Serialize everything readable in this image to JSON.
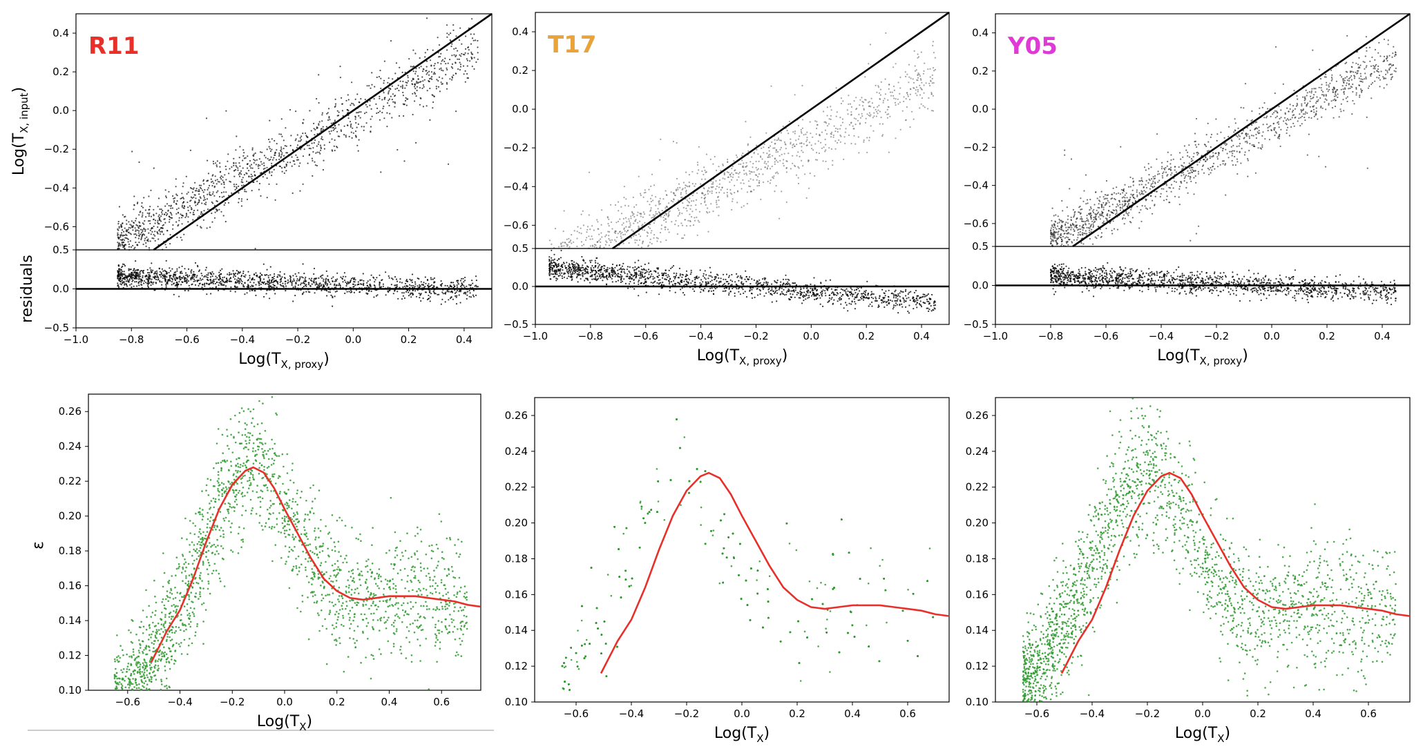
{
  "figure": {
    "xlabel_proxy_main": "Log(T",
    "xlabel_proxy_sub": "X, proxy",
    "xlabel_proxy_close": ")",
    "ylabel_input_main": "Log(T",
    "ylabel_input_sub": "X, input",
    "ylabel_input_close": ")",
    "ylabel_residuals": "residuals",
    "xlabel_tx_main": "Log(T",
    "xlabel_tx_sub": "X",
    "xlabel_tx_close": ")",
    "ylabel_eps": "ε"
  },
  "chart_data": [
    {
      "id": "R11",
      "type": "scatter",
      "panel_label": "R11",
      "label_color": "#e8302a",
      "point_color": "#111111",
      "point_opacity": 0.75,
      "top": {
        "xlim": [
          -1.0,
          0.5
        ],
        "ylim": [
          -0.72,
          0.5
        ],
        "yticks": [
          0.4,
          0.2,
          0.0,
          -0.2,
          -0.4,
          -0.6
        ],
        "ytick_labels": [
          "0.4",
          "0.2",
          "0.0",
          "−0.2",
          "−0.4",
          "−0.6"
        ],
        "reference_line": {
          "slope": 1.0,
          "intercept": 0.0
        },
        "cloud": {
          "x_range": [
            -0.85,
            0.45
          ],
          "slope": 0.78,
          "intercept": -0.03,
          "scatter": 0.07
        }
      },
      "residuals": {
        "xlim": [
          -1.0,
          0.5
        ],
        "ylim": [
          -0.5,
          0.5
        ],
        "yticks": [
          0.5,
          0.0,
          -0.5
        ],
        "ytick_labels": [
          "0.5",
          "0.0",
          "−0.5"
        ],
        "xticks": [
          -1.0,
          -0.8,
          -0.6,
          -0.4,
          -0.2,
          0.0,
          0.2,
          0.4
        ],
        "xtick_labels": [
          "−1.0",
          "−0.8",
          "−0.6",
          "−0.4",
          "−0.2",
          "0.0",
          "0.2",
          "0.4"
        ],
        "zero_line": 0.0,
        "trend": {
          "at_minus_0_8": 0.15,
          "at_0_4": 0.0
        }
      },
      "epsilon": {
        "xlim": [
          -0.75,
          0.75
        ],
        "ylim": [
          0.1,
          0.27
        ],
        "yticks": [
          0.1,
          0.12,
          0.14,
          0.16,
          0.18,
          0.2,
          0.22,
          0.24,
          0.26
        ],
        "ytick_labels": [
          "0.10",
          "0.12",
          "0.14",
          "0.16",
          "0.18",
          "0.20",
          "0.22",
          "0.24",
          "0.26"
        ],
        "xticks": [
          -0.6,
          -0.4,
          -0.2,
          0.0,
          0.2,
          0.4,
          0.6
        ],
        "xtick_labels": [
          "−0.6",
          "−0.4",
          "−0.2",
          "0.0",
          "0.2",
          "0.4",
          "0.6"
        ],
        "point_color": "#2e9a2e",
        "x_shift": 0.0,
        "curve": {
          "color": "#e8302a",
          "x": [
            -0.51,
            -0.45,
            -0.4,
            -0.35,
            -0.3,
            -0.25,
            -0.2,
            -0.15,
            -0.12,
            -0.08,
            -0.04,
            0.0,
            0.05,
            0.1,
            0.15,
            0.2,
            0.25,
            0.3,
            0.35,
            0.4,
            0.45,
            0.5,
            0.55,
            0.6,
            0.65,
            0.7,
            0.75
          ],
          "y": [
            0.116,
            0.134,
            0.146,
            0.164,
            0.185,
            0.204,
            0.218,
            0.226,
            0.228,
            0.225,
            0.216,
            0.204,
            0.19,
            0.176,
            0.164,
            0.157,
            0.153,
            0.152,
            0.153,
            0.154,
            0.154,
            0.154,
            0.153,
            0.152,
            0.151,
            0.149,
            0.148
          ]
        }
      }
    },
    {
      "id": "T17",
      "type": "scatter",
      "panel_label": "T17",
      "label_color": "#e8a33d",
      "point_color": "#555555",
      "point_opacity": 0.55,
      "top": {
        "xlim": [
          -1.0,
          0.5
        ],
        "ylim": [
          -0.72,
          0.5
        ],
        "yticks": [
          0.4,
          0.2,
          0.0,
          -0.2,
          -0.4,
          -0.6
        ],
        "ytick_labels": [
          "0.4",
          "0.2",
          "0.0",
          "−0.2",
          "−0.4",
          "−0.6"
        ],
        "reference_line": {
          "slope": 1.0,
          "intercept": 0.0
        },
        "cloud": {
          "x_range": [
            -0.95,
            0.45
          ],
          "slope": 0.72,
          "intercept": -0.16,
          "scatter": 0.08
        }
      },
      "residuals": {
        "xlim": [
          -1.0,
          0.5
        ],
        "ylim": [
          -0.5,
          0.5
        ],
        "yticks": [
          0.5,
          0.0,
          -0.5
        ],
        "ytick_labels": [
          "0.5",
          "0.0",
          "−0.5"
        ],
        "xticks": [
          -1.0,
          -0.8,
          -0.6,
          -0.4,
          -0.2,
          0.0,
          0.2,
          0.4
        ],
        "xtick_labels": [
          "−1.0",
          "−0.8",
          "−0.6",
          "−0.4",
          "−0.2",
          "0.0",
          "0.2",
          "0.4"
        ],
        "zero_line": 0.0,
        "trend": {
          "at_minus_0_8": 0.2,
          "at_0_4": -0.2
        }
      },
      "epsilon": {
        "xlim": [
          -0.75,
          0.75
        ],
        "ylim": [
          0.1,
          0.27
        ],
        "yticks": [
          0.1,
          0.12,
          0.14,
          0.16,
          0.18,
          0.2,
          0.22,
          0.24,
          0.26
        ],
        "ytick_labels": [
          "0.10",
          "0.12",
          "0.14",
          "0.16",
          "0.18",
          "0.20",
          "0.22",
          "0.24",
          "0.26"
        ],
        "xticks": [
          -0.6,
          -0.4,
          -0.2,
          0.0,
          0.2,
          0.4,
          0.6
        ],
        "xtick_labels": [
          "−0.6",
          "−0.4",
          "−0.2",
          "0.0",
          "0.2",
          "0.4",
          "0.6"
        ],
        "point_color": "#2e9a2e",
        "x_shift": -0.12,
        "curve": {
          "color": "#e8302a",
          "x": [
            -0.51,
            -0.45,
            -0.4,
            -0.35,
            -0.3,
            -0.25,
            -0.2,
            -0.15,
            -0.12,
            -0.08,
            -0.04,
            0.0,
            0.05,
            0.1,
            0.15,
            0.2,
            0.25,
            0.3,
            0.35,
            0.4,
            0.45,
            0.5,
            0.55,
            0.6,
            0.65,
            0.7,
            0.75
          ],
          "y": [
            0.116,
            0.134,
            0.146,
            0.164,
            0.185,
            0.204,
            0.218,
            0.226,
            0.228,
            0.225,
            0.216,
            0.204,
            0.19,
            0.176,
            0.164,
            0.157,
            0.153,
            0.152,
            0.153,
            0.154,
            0.154,
            0.154,
            0.153,
            0.152,
            0.151,
            0.149,
            0.148
          ]
        }
      }
    },
    {
      "id": "Y05",
      "type": "scatter",
      "panel_label": "Y05",
      "label_color": "#e03ad6",
      "point_color": "#222222",
      "point_opacity": 0.65,
      "top": {
        "xlim": [
          -1.0,
          0.5
        ],
        "ylim": [
          -0.72,
          0.5
        ],
        "yticks": [
          0.4,
          0.2,
          0.0,
          -0.2,
          -0.4,
          -0.6
        ],
        "ytick_labels": [
          "0.4",
          "0.2",
          "0.0",
          "−0.2",
          "−0.4",
          "−0.6"
        ],
        "reference_line": {
          "slope": 1.0,
          "intercept": 0.0
        },
        "cloud": {
          "x_range": [
            -0.8,
            0.45
          ],
          "slope": 0.76,
          "intercept": -0.08,
          "scatter": 0.06
        }
      },
      "residuals": {
        "xlim": [
          -1.0,
          0.5
        ],
        "ylim": [
          -0.5,
          0.5
        ],
        "yticks": [
          0.5,
          0.0,
          -0.5
        ],
        "ytick_labels": [
          "0.5",
          "0.0",
          "−0.5"
        ],
        "xticks": [
          -1.0,
          -0.8,
          -0.6,
          -0.4,
          -0.2,
          0.0,
          0.2,
          0.4
        ],
        "xtick_labels": [
          "−1.0",
          "−0.8",
          "−0.6",
          "−0.4",
          "−0.2",
          "0.0",
          "0.2",
          "0.4"
        ],
        "zero_line": 0.0,
        "trend": {
          "at_minus_0_8": 0.12,
          "at_0_4": -0.08
        }
      },
      "epsilon": {
        "xlim": [
          -0.75,
          0.75
        ],
        "ylim": [
          0.1,
          0.27
        ],
        "yticks": [
          0.1,
          0.12,
          0.14,
          0.16,
          0.18,
          0.2,
          0.22,
          0.24,
          0.26
        ],
        "ytick_labels": [
          "0.10",
          "0.12",
          "0.14",
          "0.16",
          "0.18",
          "0.20",
          "0.22",
          "0.24",
          "0.26"
        ],
        "xticks": [
          -0.6,
          -0.4,
          -0.2,
          0.0,
          0.2,
          0.4,
          0.6
        ],
        "xtick_labels": [
          "−0.6",
          "−0.4",
          "−0.2",
          "0.0",
          "0.2",
          "0.4",
          "0.6"
        ],
        "point_color": "#2e9a2e",
        "x_shift": -0.08,
        "curve": {
          "color": "#e8302a",
          "x": [
            -0.51,
            -0.45,
            -0.4,
            -0.35,
            -0.3,
            -0.25,
            -0.2,
            -0.15,
            -0.12,
            -0.08,
            -0.04,
            0.0,
            0.05,
            0.1,
            0.15,
            0.2,
            0.25,
            0.3,
            0.35,
            0.4,
            0.45,
            0.5,
            0.55,
            0.6,
            0.65,
            0.7,
            0.75
          ],
          "y": [
            0.116,
            0.134,
            0.146,
            0.164,
            0.185,
            0.204,
            0.218,
            0.226,
            0.228,
            0.225,
            0.216,
            0.204,
            0.19,
            0.176,
            0.164,
            0.157,
            0.153,
            0.152,
            0.153,
            0.154,
            0.154,
            0.154,
            0.153,
            0.152,
            0.151,
            0.149,
            0.148
          ]
        }
      }
    }
  ]
}
